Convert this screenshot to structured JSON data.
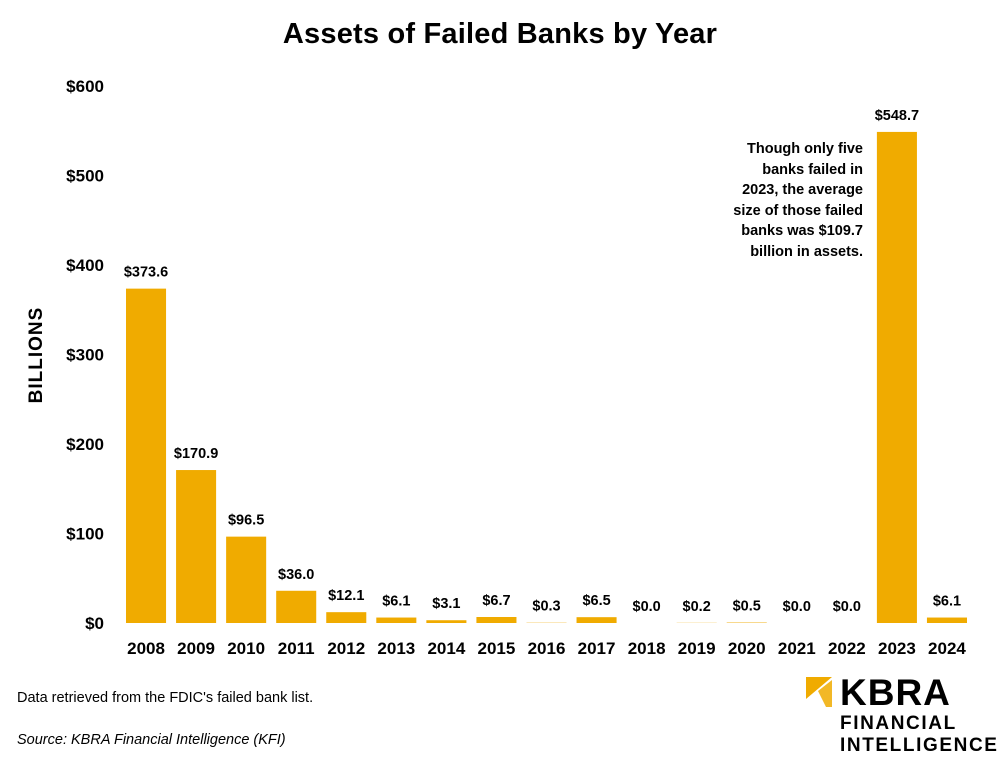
{
  "chart_data": {
    "type": "bar",
    "title": "Assets of Failed Banks by Year",
    "ylabel": "BILLIONS",
    "xlabel": "",
    "ylim": [
      0,
      600
    ],
    "y_ticks": [
      "$0",
      "$100",
      "$200",
      "$300",
      "$400",
      "$500",
      "$600"
    ],
    "y_tick_values": [
      0,
      100,
      200,
      300,
      400,
      500,
      600
    ],
    "categories": [
      "2008",
      "2009",
      "2010",
      "2011",
      "2012",
      "2013",
      "2014",
      "2015",
      "2016",
      "2017",
      "2018",
      "2019",
      "2020",
      "2021",
      "2022",
      "2023",
      "2024"
    ],
    "values": [
      373.6,
      170.9,
      96.5,
      36.0,
      12.1,
      6.1,
      3.1,
      6.7,
      0.3,
      6.5,
      0.0,
      0.2,
      0.5,
      0.0,
      0.0,
      548.7,
      6.1
    ],
    "value_labels": [
      "$373.6",
      "$170.9",
      "$96.5",
      "$36.0",
      "$12.1",
      "$6.1",
      "$3.1",
      "$6.7",
      "$0.3",
      "$6.5",
      "$0.0",
      "$0.2",
      "$0.5",
      "$0.0",
      "$0.0",
      "$548.7",
      "$6.1"
    ],
    "bar_color": "#F0AB00",
    "grid": false,
    "legend": "none",
    "annotation": [
      "Though only five",
      "banks failed in",
      "2023, the average",
      "size of those failed",
      "banks was $109.7",
      "billion in assets."
    ]
  },
  "footer": {
    "note": "Data retrieved from the FDIC's failed bank list.",
    "source": "Source: KBRA Financial Intelligence (KFI)"
  },
  "brand": {
    "name": "KBRA",
    "line1": "FINANCIAL",
    "line2": "INTELLIGENCE",
    "accent_color": "#F0AB00"
  }
}
